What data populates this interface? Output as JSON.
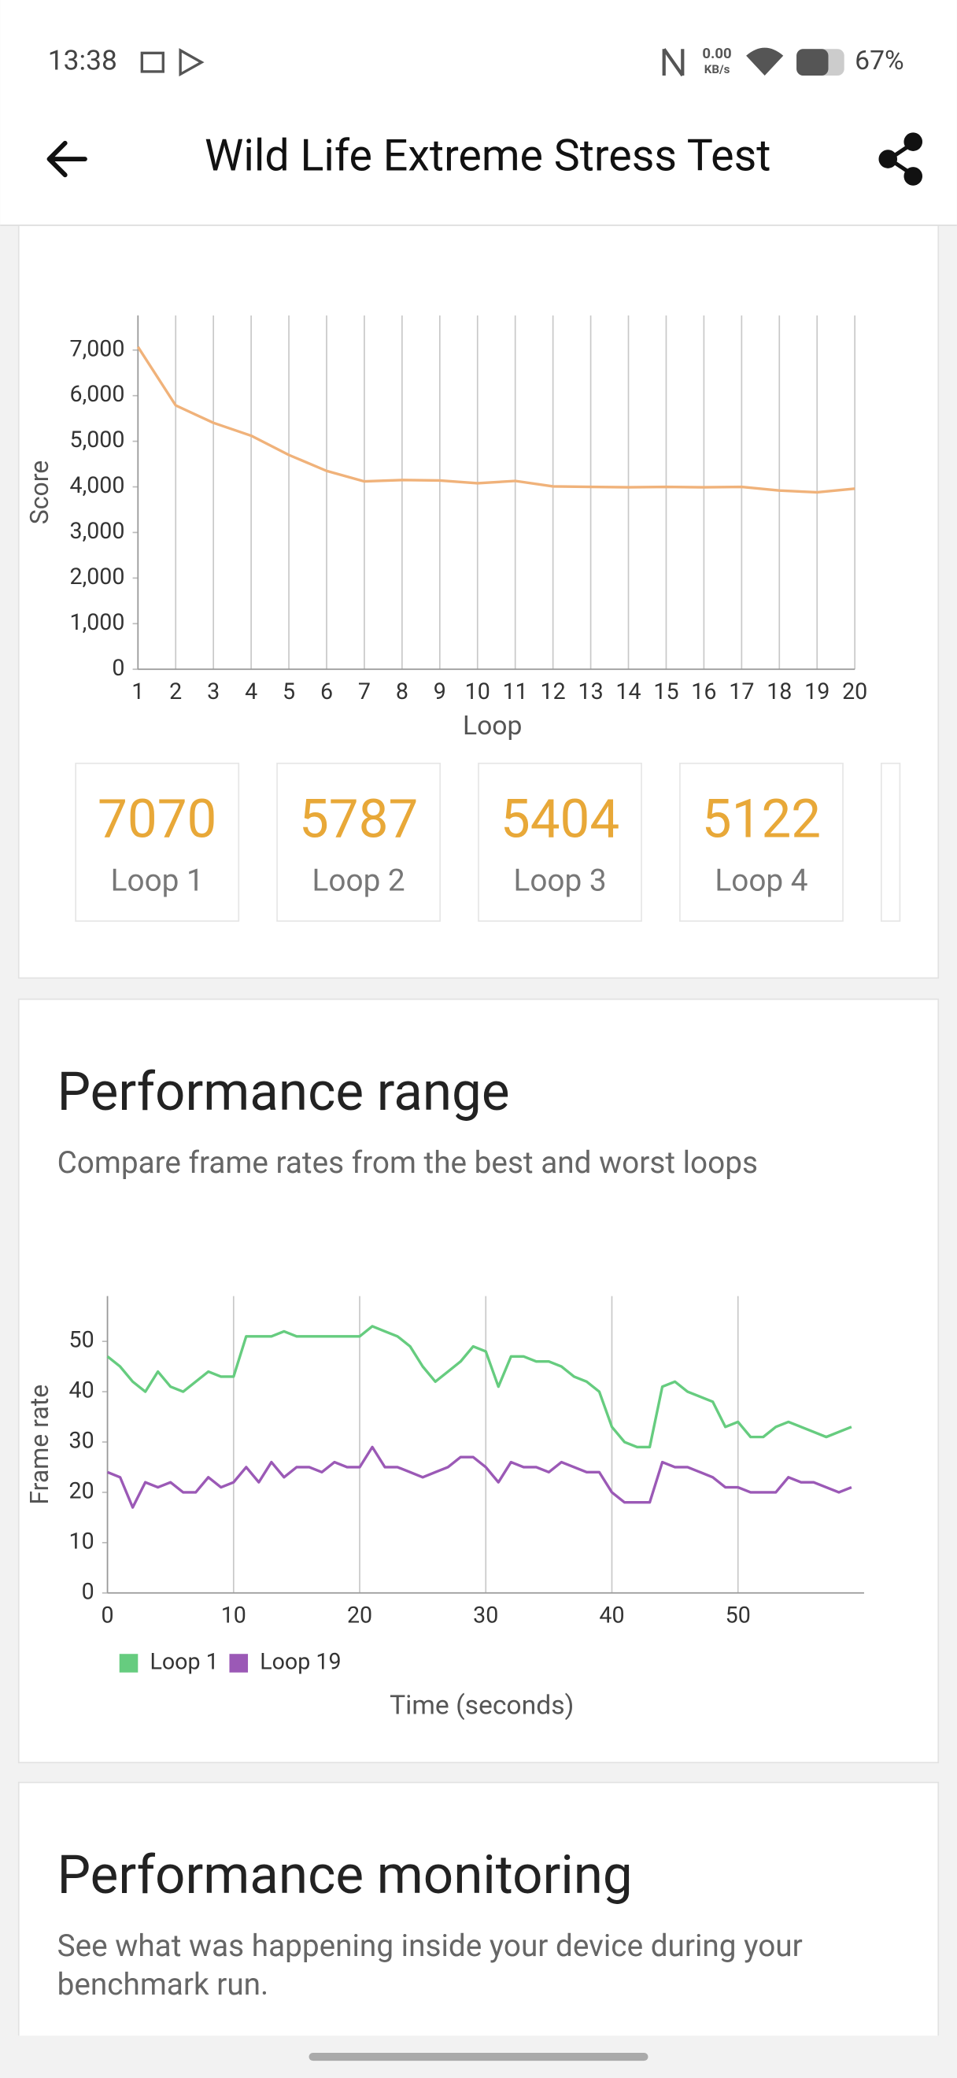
{
  "status_bar": {
    "time": "13:38",
    "speed": "0.00",
    "speed_unit": "KB/s",
    "battery": "67%"
  },
  "header": {
    "title": "Wild Life Extreme Stress Test"
  },
  "loop_cards": [
    {
      "value": 7070,
      "label": "Loop 1"
    },
    {
      "value": 5787,
      "label": "Loop 2"
    },
    {
      "value": 5404,
      "label": "Loop 3"
    },
    {
      "value": 5122,
      "label": "Loop 4"
    }
  ],
  "range_section": {
    "title": "Performance range",
    "subtitle": "Compare frame rates from the best and worst loops"
  },
  "monitoring_section": {
    "title": "Performance monitoring",
    "subtitle_lines": [
      "See what was happening inside your device during your",
      "benchmark run."
    ]
  },
  "chart_data": [
    {
      "type": "line",
      "x_label": "Loop",
      "y_label": "Score",
      "x": [
        1,
        2,
        3,
        4,
        5,
        6,
        7,
        8,
        9,
        10,
        11,
        12,
        13,
        14,
        15,
        16,
        17,
        18,
        19,
        20
      ],
      "series": [
        {
          "color": "#f0b27a",
          "values": [
            7070,
            5787,
            5404,
            5122,
            4700,
            4350,
            4120,
            4150,
            4140,
            4080,
            4130,
            4010,
            4000,
            3990,
            4000,
            3990,
            4000,
            3920,
            3880,
            3960
          ]
        }
      ],
      "xlim": [
        1,
        20
      ],
      "xticks": [
        1,
        2,
        3,
        4,
        5,
        6,
        7,
        8,
        9,
        10,
        11,
        12,
        13,
        14,
        15,
        16,
        17,
        18,
        19,
        20
      ],
      "ylim": [
        0,
        7760
      ],
      "yticks": [
        0,
        {
          "value": 1000,
          "label": "1,000"
        },
        {
          "value": 2000,
          "label": "2,000"
        },
        {
          "value": 3000,
          "label": "3,000"
        },
        {
          "value": 4000,
          "label": "4,000"
        },
        {
          "value": 5000,
          "label": "5,000"
        },
        {
          "value": 6000,
          "label": "6,000"
        },
        {
          "value": 7000,
          "label": "7,000"
        }
      ],
      "grid": "x"
    },
    {
      "type": "line",
      "x_label": "Time (seconds)",
      "y_label": "Frame rate",
      "x": [
        0,
        1,
        2,
        3,
        4,
        5,
        6,
        7,
        8,
        9,
        10,
        11,
        12,
        13,
        14,
        15,
        16,
        17,
        18,
        19,
        20,
        21,
        22,
        23,
        24,
        25,
        26,
        27,
        28,
        29,
        30,
        31,
        32,
        33,
        34,
        35,
        36,
        37,
        38,
        39,
        40,
        41,
        42,
        43,
        44,
        45,
        46,
        47,
        48,
        49,
        50,
        51,
        52,
        53,
        54,
        55,
        56,
        57,
        58,
        59
      ],
      "series": [
        {
          "name": "Loop 1",
          "color": "#66cc7f",
          "values": [
            47,
            45,
            42,
            40,
            44,
            41,
            40,
            42,
            44,
            43,
            43,
            51,
            51,
            51,
            52,
            51,
            51,
            51,
            51,
            51,
            51,
            53,
            52,
            51,
            49,
            45,
            42,
            44,
            46,
            49,
            48,
            41,
            47,
            47,
            46,
            46,
            45,
            43,
            42,
            40,
            33,
            30,
            29,
            29,
            41,
            42,
            40,
            39,
            38,
            33,
            34,
            31,
            31,
            33,
            34,
            33,
            32,
            31,
            32,
            33
          ]
        },
        {
          "name": "Loop 19",
          "color": "#9b59b6",
          "values": [
            24,
            23,
            17,
            22,
            21,
            22,
            20,
            20,
            23,
            21,
            22,
            25,
            22,
            26,
            23,
            25,
            25,
            24,
            26,
            25,
            25,
            29,
            25,
            25,
            24,
            23,
            24,
            25,
            27,
            27,
            25,
            22,
            26,
            25,
            25,
            24,
            26,
            25,
            24,
            24,
            20,
            18,
            18,
            18,
            26,
            25,
            25,
            24,
            23,
            21,
            21,
            20,
            20,
            20,
            23,
            22,
            22,
            21,
            20,
            21
          ]
        }
      ],
      "xlim": [
        0,
        60
      ],
      "xticks": [
        0,
        10,
        20,
        30,
        40,
        50
      ],
      "ylim": [
        0,
        59
      ],
      "yticks": [
        0,
        10,
        20,
        30,
        40,
        50
      ],
      "grid": "x",
      "legend": "bottom-left"
    }
  ]
}
